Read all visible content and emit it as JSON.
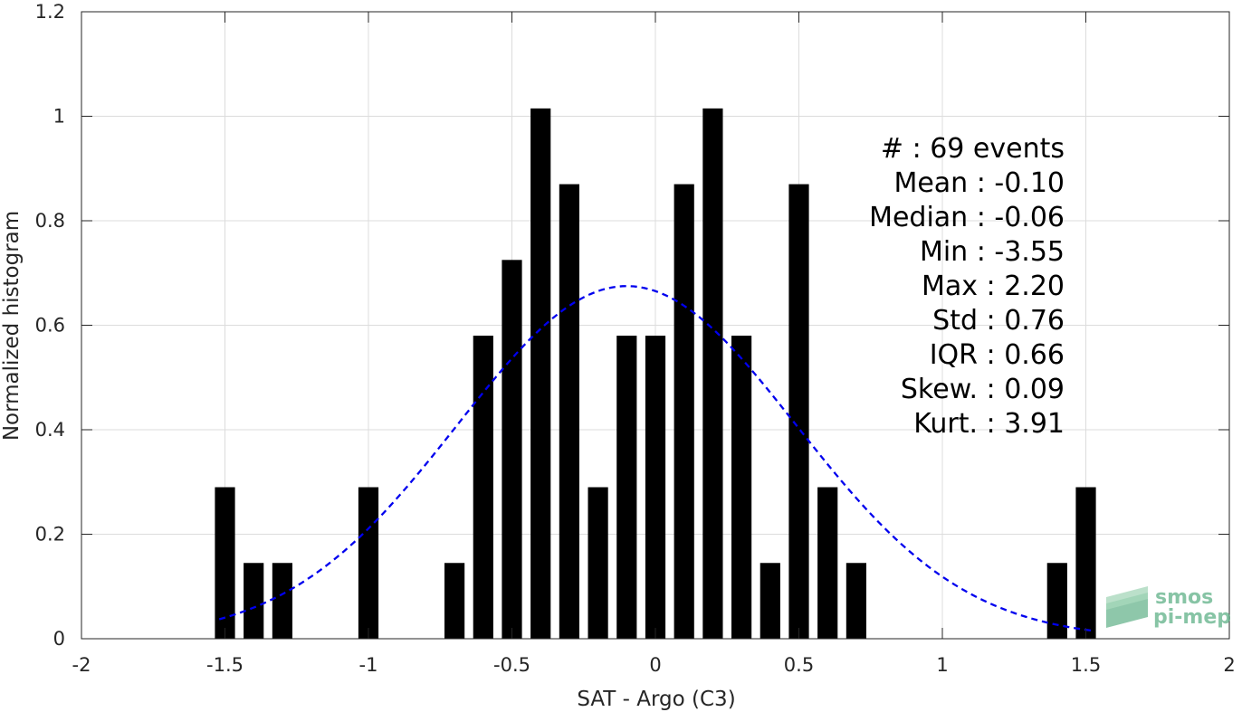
{
  "chart_data": {
    "type": "bar",
    "xlabel": "SAT - Argo (C3)",
    "ylabel": "Normalized histogram",
    "xlim": [
      -2,
      2
    ],
    "ylim": [
      0,
      1.2
    ],
    "grid": true,
    "xticks": [
      -2,
      -1.5,
      -1,
      -0.5,
      0,
      0.5,
      1,
      1.5,
      2
    ],
    "xtick_labels": [
      "-2",
      "-1.5",
      "-1",
      "-0.5",
      "0",
      "0.5",
      "1",
      "1.5",
      "2"
    ],
    "yticks": [
      0,
      0.2,
      0.4,
      0.6,
      0.8,
      1,
      1.2
    ],
    "ytick_labels": [
      "0",
      "0.2",
      "0.4",
      "0.6",
      "0.8",
      "1",
      "1.2"
    ],
    "bar_color": "#000000",
    "bar_width": 0.07,
    "bars": [
      {
        "x": -1.5,
        "y": 0.29
      },
      {
        "x": -1.4,
        "y": 0.145
      },
      {
        "x": -1.3,
        "y": 0.145
      },
      {
        "x": -1.0,
        "y": 0.29
      },
      {
        "x": -0.7,
        "y": 0.145
      },
      {
        "x": -0.6,
        "y": 0.58
      },
      {
        "x": -0.5,
        "y": 0.725
      },
      {
        "x": -0.4,
        "y": 1.015
      },
      {
        "x": -0.3,
        "y": 0.87
      },
      {
        "x": -0.2,
        "y": 0.29
      },
      {
        "x": -0.1,
        "y": 0.58
      },
      {
        "x": 0.0,
        "y": 0.58
      },
      {
        "x": 0.1,
        "y": 0.87
      },
      {
        "x": 0.2,
        "y": 1.015
      },
      {
        "x": 0.3,
        "y": 0.58
      },
      {
        "x": 0.4,
        "y": 0.145
      },
      {
        "x": 0.5,
        "y": 0.87
      },
      {
        "x": 0.6,
        "y": 0.29
      },
      {
        "x": 0.7,
        "y": 0.145
      },
      {
        "x": 1.4,
        "y": 0.145
      },
      {
        "x": 1.5,
        "y": 0.29
      }
    ],
    "fit_curve": {
      "style": "dashed",
      "color": "#0000ee",
      "mean": -0.1,
      "std": 0.59,
      "peak": 0.675,
      "x_range": [
        -1.52,
        1.52
      ]
    },
    "annotations": [
      "#  : 69 events",
      "Mean : -0.10",
      "Median : -0.06",
      "Min : -3.55",
      "Max : 2.20",
      "Std : 0.76",
      "IQR : 0.66",
      "Skew. : 0.09",
      "Kurt. : 3.91"
    ]
  },
  "logo": {
    "line1": "smos",
    "line2": "pi-mep",
    "color": "#5fb087"
  }
}
